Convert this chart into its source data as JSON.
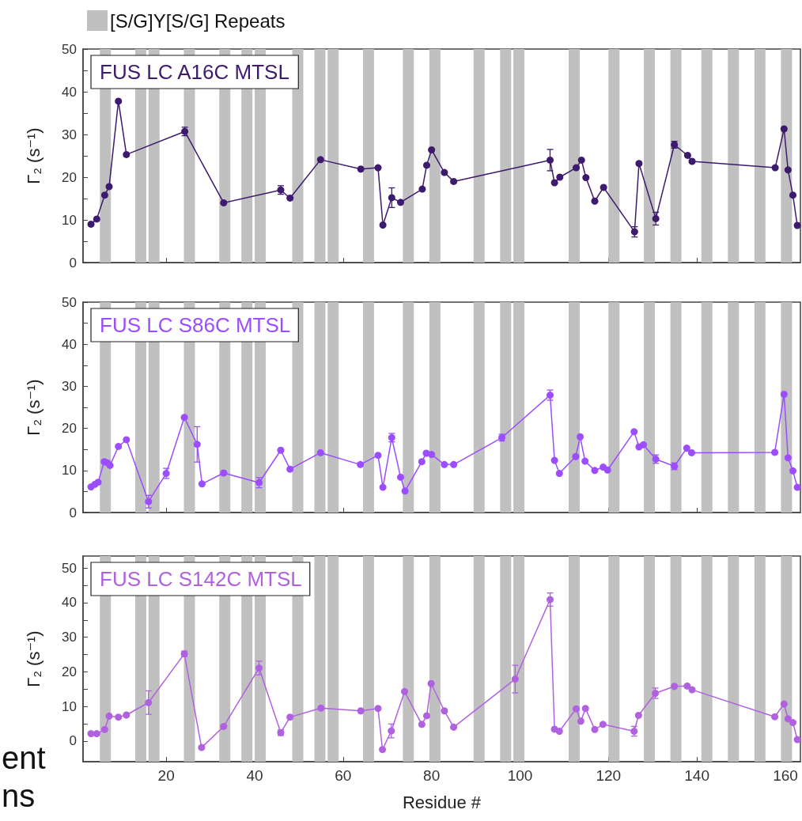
{
  "chart_data": [
    {
      "type": "line",
      "ylabel": "Γ₂ (s⁻¹)",
      "xlim": [
        1.2,
        163.4
      ],
      "ylim": [
        0,
        50
      ],
      "xticks": [
        20,
        40,
        60,
        80,
        100,
        120,
        140,
        160
      ],
      "yticks": [
        0,
        {
          "value": 5,
          "label": null
        },
        10,
        {
          "value": 15,
          "label": null
        },
        20,
        {
          "value": 25,
          "label": null
        },
        30,
        {
          "value": 35,
          "label": null
        },
        40,
        {
          "value": 45,
          "label": null
        },
        50
      ],
      "tick_labels": "y",
      "grid": false,
      "legend": "top left",
      "marker": "circle",
      "line_style": "solid",
      "series": [
        {
          "name": "FUS LC A16C MTSL",
          "color": "#3d1a6e",
          "x": [
            3,
            4.3,
            6.1,
            7.1,
            9.2,
            11,
            24.2,
            33,
            45.9,
            48,
            54.9,
            64,
            67.9,
            69,
            71,
            73,
            77.9,
            78.9,
            80,
            82.9,
            85,
            106.8,
            107.8,
            109,
            112.7,
            113.9,
            114.9,
            116.9,
            118.9,
            125.9,
            126.9,
            130.7,
            134.9,
            137.9,
            138.9,
            157.7,
            159.7,
            160.6,
            161.7,
            162.7
          ],
          "values": [
            9,
            10.2,
            15.8,
            17.8,
            37.8,
            25.3,
            30.7,
            14,
            17,
            15.1,
            24.1,
            21.9,
            22.2,
            8.8,
            15.2,
            14.1,
            17.2,
            22.8,
            26.4,
            21.1,
            19,
            24,
            18.7,
            20,
            22.2,
            24,
            19.9,
            14.4,
            17.6,
            7.2,
            23.2,
            10.3,
            27.6,
            25.1,
            23.7,
            22.2,
            31.3,
            21.7,
            15.8,
            8.7
          ],
          "errors": [
            null,
            null,
            null,
            null,
            null,
            null,
            1,
            null,
            1,
            null,
            null,
            null,
            null,
            null,
            2.3,
            null,
            null,
            null,
            null,
            null,
            null,
            2.5,
            null,
            null,
            null,
            null,
            null,
            null,
            null,
            1.2,
            null,
            1.5,
            0.8,
            null,
            null,
            null,
            null,
            null,
            null,
            null
          ]
        }
      ],
      "bands": [
        {
          "axis": "x",
          "from": 5,
          "to": 7.5,
          "color": "#c0c0c0",
          "label": "[S/G]Y[S/G] Repeats"
        },
        {
          "axis": "x",
          "from": 13,
          "to": 15.5,
          "color": "#c0c0c0"
        },
        {
          "axis": "x",
          "from": 16,
          "to": 18.5,
          "color": "#c0c0c0"
        },
        {
          "axis": "x",
          "from": 24,
          "to": 26.5,
          "color": "#c0c0c0"
        },
        {
          "axis": "x",
          "from": 32,
          "to": 34.5,
          "color": "#c0c0c0"
        },
        {
          "axis": "x",
          "from": 37,
          "to": 39.5,
          "color": "#c0c0c0"
        },
        {
          "axis": "x",
          "from": 40,
          "to": 42.5,
          "color": "#c0c0c0"
        },
        {
          "axis": "x",
          "from": 48.5,
          "to": 51,
          "color": "#c0c0c0"
        },
        {
          "axis": "x",
          "from": 53.5,
          "to": 56,
          "color": "#c0c0c0"
        },
        {
          "axis": "x",
          "from": 56.5,
          "to": 59,
          "color": "#c0c0c0"
        },
        {
          "axis": "x",
          "from": 64.5,
          "to": 67,
          "color": "#c0c0c0"
        },
        {
          "axis": "x",
          "from": 73.5,
          "to": 76,
          "color": "#c0c0c0"
        },
        {
          "axis": "x",
          "from": 79.5,
          "to": 82,
          "color": "#c0c0c0"
        },
        {
          "axis": "x",
          "from": 89.5,
          "to": 92,
          "color": "#c0c0c0"
        },
        {
          "axis": "x",
          "from": 95.5,
          "to": 98,
          "color": "#c0c0c0"
        },
        {
          "axis": "x",
          "from": 98.5,
          "to": 101,
          "color": "#c0c0c0"
        },
        {
          "axis": "x",
          "from": 111,
          "to": 113.5,
          "color": "#c0c0c0"
        },
        {
          "axis": "x",
          "from": 120,
          "to": 122.5,
          "color": "#c0c0c0"
        },
        {
          "axis": "x",
          "from": 128,
          "to": 130.5,
          "color": "#c0c0c0"
        },
        {
          "axis": "x",
          "from": 134,
          "to": 136.5,
          "color": "#c0c0c0"
        },
        {
          "axis": "x",
          "from": 141,
          "to": 143.5,
          "color": "#c0c0c0"
        },
        {
          "axis": "x",
          "from": 147,
          "to": 149.5,
          "color": "#c0c0c0"
        },
        {
          "axis": "x",
          "from": 153,
          "to": 155.5,
          "color": "#c0c0c0"
        },
        {
          "axis": "x",
          "from": 159,
          "to": 161.5,
          "color": "#c0c0c0"
        }
      ]
    },
    {
      "type": "line",
      "ylabel": "Γ₂ (s⁻¹)",
      "xlim": [
        1.2,
        163.4
      ],
      "ylim": [
        0,
        50
      ],
      "xticks": [
        20,
        40,
        60,
        80,
        100,
        120,
        140,
        160
      ],
      "yticks": [
        0,
        {
          "value": 5,
          "label": null
        },
        10,
        {
          "value": 15,
          "label": null
        },
        20,
        {
          "value": 25,
          "label": null
        },
        30,
        {
          "value": 35,
          "label": null
        },
        40,
        {
          "value": 45,
          "label": null
        },
        50
      ],
      "tick_labels": "y",
      "grid": false,
      "legend": "top left",
      "marker": "circle",
      "line_style": "solid",
      "series": [
        {
          "name": "FUS LC S86C MTSL",
          "color": "#9b4dff",
          "x": [
            3,
            3.9,
            4.6,
            6,
            6.7,
            7.3,
            9.2,
            11,
            16,
            20,
            24.1,
            27,
            28.1,
            33,
            41,
            45.9,
            48,
            54.9,
            63.9,
            67.9,
            69,
            71,
            73,
            74,
            77.8,
            78.8,
            80,
            82.9,
            85,
            95.9,
            106.8,
            107.8,
            108.9,
            112.6,
            113.6,
            114.7,
            116.9,
            118.8,
            119.8,
            125.8,
            126.9,
            127.9,
            130.7,
            134.9,
            137.7,
            138.8,
            157.6,
            159.7,
            160.6,
            161.7,
            162.7
          ],
          "values": [
            6.1,
            6.7,
            7.2,
            12.1,
            11.8,
            11.2,
            15.7,
            17.3,
            2.6,
            9.3,
            22.6,
            16.2,
            6.8,
            9.4,
            7.1,
            14.8,
            10.3,
            14.2,
            11.4,
            13.6,
            6,
            17.8,
            8.4,
            5.1,
            12.1,
            14.1,
            13.8,
            11.4,
            11.4,
            17.8,
            27.9,
            12.4,
            9.3,
            13.3,
            18,
            12.2,
            10,
            10.8,
            10.1,
            19.2,
            15.6,
            16.1,
            12.7,
            11,
            15.3,
            14.2,
            14.3,
            28.1,
            13,
            9.9,
            6
          ],
          "errors": [
            null,
            null,
            null,
            null,
            null,
            null,
            null,
            null,
            1.5,
            1.2,
            null,
            4.2,
            null,
            null,
            1.2,
            null,
            null,
            null,
            null,
            null,
            null,
            1,
            null,
            null,
            null,
            null,
            null,
            null,
            null,
            0.8,
            1.2,
            null,
            null,
            null,
            null,
            null,
            null,
            null,
            null,
            null,
            null,
            null,
            1,
            0.8,
            null,
            null,
            null,
            null,
            null,
            null,
            null
          ]
        }
      ],
      "bands": [
        {
          "axis": "x",
          "from": 5,
          "to": 7.5,
          "color": "#c0c0c0"
        },
        {
          "axis": "x",
          "from": 13,
          "to": 15.5,
          "color": "#c0c0c0"
        },
        {
          "axis": "x",
          "from": 16,
          "to": 18.5,
          "color": "#c0c0c0"
        },
        {
          "axis": "x",
          "from": 24,
          "to": 26.5,
          "color": "#c0c0c0"
        },
        {
          "axis": "x",
          "from": 32,
          "to": 34.5,
          "color": "#c0c0c0"
        },
        {
          "axis": "x",
          "from": 37,
          "to": 39.5,
          "color": "#c0c0c0"
        },
        {
          "axis": "x",
          "from": 40,
          "to": 42.5,
          "color": "#c0c0c0"
        },
        {
          "axis": "x",
          "from": 48.5,
          "to": 51,
          "color": "#c0c0c0"
        },
        {
          "axis": "x",
          "from": 53.5,
          "to": 56,
          "color": "#c0c0c0"
        },
        {
          "axis": "x",
          "from": 56.5,
          "to": 59,
          "color": "#c0c0c0"
        },
        {
          "axis": "x",
          "from": 64.5,
          "to": 67,
          "color": "#c0c0c0"
        },
        {
          "axis": "x",
          "from": 73.5,
          "to": 76,
          "color": "#c0c0c0"
        },
        {
          "axis": "x",
          "from": 79.5,
          "to": 82,
          "color": "#c0c0c0"
        },
        {
          "axis": "x",
          "from": 89.5,
          "to": 92,
          "color": "#c0c0c0"
        },
        {
          "axis": "x",
          "from": 95.5,
          "to": 98,
          "color": "#c0c0c0"
        },
        {
          "axis": "x",
          "from": 98.5,
          "to": 101,
          "color": "#c0c0c0"
        },
        {
          "axis": "x",
          "from": 111,
          "to": 113.5,
          "color": "#c0c0c0"
        },
        {
          "axis": "x",
          "from": 120,
          "to": 122.5,
          "color": "#c0c0c0"
        },
        {
          "axis": "x",
          "from": 128,
          "to": 130.5,
          "color": "#c0c0c0"
        },
        {
          "axis": "x",
          "from": 134,
          "to": 136.5,
          "color": "#c0c0c0"
        },
        {
          "axis": "x",
          "from": 141,
          "to": 143.5,
          "color": "#c0c0c0"
        },
        {
          "axis": "x",
          "from": 147,
          "to": 149.5,
          "color": "#c0c0c0"
        },
        {
          "axis": "x",
          "from": 153,
          "to": 155.5,
          "color": "#c0c0c0"
        },
        {
          "axis": "x",
          "from": 159,
          "to": 161.5,
          "color": "#c0c0c0"
        }
      ]
    },
    {
      "type": "line",
      "ylabel": "Γ₂ (s⁻¹)",
      "xlabel": "Residue #",
      "xlim": [
        1.2,
        163.4
      ],
      "ylim": [
        -6,
        53.5
      ],
      "xticks": [
        20,
        40,
        60,
        80,
        100,
        120,
        140,
        160
      ],
      "yticks": [
        0,
        {
          "value": 5,
          "label": null
        },
        10,
        {
          "value": 15,
          "label": null
        },
        20,
        {
          "value": 25,
          "label": null
        },
        30,
        {
          "value": 35,
          "label": null
        },
        40,
        {
          "value": 45,
          "label": null
        },
        50
      ],
      "grid": false,
      "legend": "top left",
      "marker": "circle",
      "line_style": "solid",
      "annotations": [
        "ent",
        "ns"
      ],
      "series": [
        {
          "name": "FUS LC S142C MTSL",
          "color": "#b061e0",
          "x": [
            3,
            4.3,
            6.1,
            7.1,
            9.2,
            11,
            16,
            24.1,
            28,
            33,
            41,
            45.9,
            48,
            55,
            64,
            67.9,
            68.9,
            70.9,
            73.9,
            77.8,
            78.9,
            79.9,
            82.9,
            85,
            98.9,
            106.8,
            107.8,
            108.9,
            112.7,
            113.75,
            114.8,
            116.9,
            118.75,
            125.8,
            126.8,
            130.6,
            134.9,
            137.8,
            138.9,
            157.6,
            159.7,
            160.6,
            161.7,
            162.7
          ],
          "values": [
            2.1,
            2.1,
            3.3,
            7.2,
            6.9,
            7.5,
            11.1,
            25.2,
            -1.9,
            4.2,
            21.1,
            2.4,
            6.9,
            9.5,
            8.7,
            9.4,
            -2.5,
            2.9,
            14.3,
            4.8,
            7.3,
            16.6,
            8.7,
            4,
            17.9,
            40.9,
            3.4,
            2.8,
            9.3,
            5.7,
            9.4,
            3.3,
            4.8,
            2.8,
            7.4,
            13.8,
            15.8,
            15.9,
            14.8,
            7,
            10.7,
            6.4,
            5.3,
            0.4
          ],
          "errors": [
            null,
            null,
            null,
            null,
            null,
            null,
            3.4,
            0.8,
            null,
            null,
            2,
            0.8,
            null,
            null,
            null,
            null,
            null,
            2,
            null,
            null,
            null,
            null,
            null,
            null,
            4,
            1.9,
            null,
            null,
            null,
            null,
            null,
            null,
            null,
            1.4,
            null,
            1.5,
            null,
            null,
            null,
            null,
            null,
            null,
            null,
            null
          ]
        }
      ],
      "bands": [
        {
          "axis": "x",
          "from": 5,
          "to": 7.5,
          "color": "#c0c0c0"
        },
        {
          "axis": "x",
          "from": 13,
          "to": 15.5,
          "color": "#c0c0c0"
        },
        {
          "axis": "x",
          "from": 16,
          "to": 18.5,
          "color": "#c0c0c0"
        },
        {
          "axis": "x",
          "from": 24,
          "to": 26.5,
          "color": "#c0c0c0"
        },
        {
          "axis": "x",
          "from": 32,
          "to": 34.5,
          "color": "#c0c0c0"
        },
        {
          "axis": "x",
          "from": 37,
          "to": 39.5,
          "color": "#c0c0c0"
        },
        {
          "axis": "x",
          "from": 40,
          "to": 42.5,
          "color": "#c0c0c0"
        },
        {
          "axis": "x",
          "from": 48.5,
          "to": 51,
          "color": "#c0c0c0"
        },
        {
          "axis": "x",
          "from": 53.5,
          "to": 56,
          "color": "#c0c0c0"
        },
        {
          "axis": "x",
          "from": 56.5,
          "to": 59,
          "color": "#c0c0c0"
        },
        {
          "axis": "x",
          "from": 64.5,
          "to": 67,
          "color": "#c0c0c0"
        },
        {
          "axis": "x",
          "from": 73.5,
          "to": 76,
          "color": "#c0c0c0"
        },
        {
          "axis": "x",
          "from": 79.5,
          "to": 82,
          "color": "#c0c0c0"
        },
        {
          "axis": "x",
          "from": 89.5,
          "to": 92,
          "color": "#c0c0c0"
        },
        {
          "axis": "x",
          "from": 95.5,
          "to": 98,
          "color": "#c0c0c0"
        },
        {
          "axis": "x",
          "from": 98.5,
          "to": 101,
          "color": "#c0c0c0"
        },
        {
          "axis": "x",
          "from": 111,
          "to": 113.5,
          "color": "#c0c0c0"
        },
        {
          "axis": "x",
          "from": 120,
          "to": 122.5,
          "color": "#c0c0c0"
        },
        {
          "axis": "x",
          "from": 128,
          "to": 130.5,
          "color": "#c0c0c0"
        },
        {
          "axis": "x",
          "from": 134,
          "to": 136.5,
          "color": "#c0c0c0"
        },
        {
          "axis": "x",
          "from": 141,
          "to": 143.5,
          "color": "#c0c0c0"
        },
        {
          "axis": "x",
          "from": 147,
          "to": 149.5,
          "color": "#c0c0c0"
        },
        {
          "axis": "x",
          "from": 153,
          "to": 155.5,
          "color": "#c0c0c0"
        },
        {
          "axis": "x",
          "from": 159,
          "to": 161.5,
          "color": "#c0c0c0"
        }
      ]
    }
  ]
}
